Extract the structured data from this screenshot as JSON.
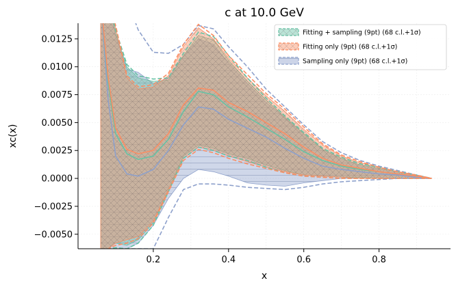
{
  "chart_data": {
    "type": "line",
    "title": "c at 10.0 GeV",
    "xlabel": "x",
    "ylabel": "xc(x)",
    "xlim": [
      0.0,
      0.99
    ],
    "ylim": [
      -0.0063,
      0.0139
    ],
    "xticks": [
      0.2,
      0.4,
      0.6,
      0.8
    ],
    "xtick_labels": [
      "0.2",
      "0.4",
      "0.6",
      "0.8"
    ],
    "yticks": [
      -0.005,
      -0.0025,
      0.0,
      0.0025,
      0.005,
      0.0075,
      0.01,
      0.0125
    ],
    "ytick_labels": [
      "−0.0050",
      "−0.0025",
      "0.0000",
      "0.0025",
      "0.0050",
      "0.0075",
      "0.0100",
      "0.0125"
    ],
    "grid": true,
    "legend_position": "top-right",
    "series": [
      {
        "name": "Fitting + sampling (9pt) (68 c.l.+1σ)",
        "color": "#66c2a5",
        "hatch": "cross",
        "x": [
          0.06,
          0.08,
          0.1,
          0.13,
          0.16,
          0.2,
          0.24,
          0.28,
          0.32,
          0.36,
          0.4,
          0.45,
          0.5,
          0.55,
          0.6,
          0.65,
          0.7,
          0.75,
          0.8,
          0.85,
          0.9,
          0.94
        ],
        "central": [
          0.016,
          0.0085,
          0.004,
          0.0022,
          0.0017,
          0.002,
          0.0035,
          0.006,
          0.0078,
          0.0075,
          0.0064,
          0.0055,
          0.0045,
          0.0035,
          0.0024,
          0.0016,
          0.0011,
          0.0008,
          0.0006,
          0.0004,
          0.0002,
          0.0
        ],
        "band_upper": [
          0.016,
          0.016,
          0.013,
          0.01,
          0.009,
          0.0087,
          0.0088,
          0.011,
          0.0128,
          0.0124,
          0.0106,
          0.0087,
          0.007,
          0.0055,
          0.004,
          0.0026,
          0.0018,
          0.0012,
          0.0009,
          0.0006,
          0.0003,
          0.0
        ],
        "band_lower": [
          -0.0063,
          -0.0063,
          -0.0058,
          -0.006,
          -0.0055,
          -0.004,
          -0.001,
          0.002,
          0.003,
          0.0027,
          0.0022,
          0.0018,
          0.0012,
          0.0007,
          0.0003,
          0.0002,
          0.0001,
          0.0001,
          0.0,
          0.0,
          0.0,
          0.0
        ],
        "dashed_upper": [
          0.016,
          0.016,
          0.0133,
          0.0102,
          0.0092,
          0.0089,
          0.009,
          0.0112,
          0.0131,
          0.0127,
          0.011,
          0.009,
          0.0072,
          0.0056,
          0.0041,
          0.0027,
          0.0019,
          0.0013,
          0.001,
          0.0006,
          0.0003,
          0.0
        ],
        "dashed_lower": [
          -0.0063,
          -0.0063,
          -0.0062,
          -0.0063,
          -0.0058,
          -0.0042,
          -0.0012,
          0.0018,
          0.0028,
          0.0025,
          0.002,
          0.0016,
          0.001,
          0.0005,
          0.0002,
          0.0001,
          0.0,
          0.0,
          0.0,
          0.0,
          0.0,
          0.0
        ]
      },
      {
        "name": "Fitting only (9pt) (68 c.l.+1σ)",
        "color": "#fc8d62",
        "hatch": "cross",
        "x": [
          0.06,
          0.08,
          0.1,
          0.13,
          0.16,
          0.2,
          0.24,
          0.28,
          0.32,
          0.36,
          0.4,
          0.45,
          0.5,
          0.55,
          0.6,
          0.65,
          0.7,
          0.75,
          0.8,
          0.85,
          0.9,
          0.94
        ],
        "central": [
          0.016,
          0.009,
          0.0045,
          0.0026,
          0.0022,
          0.0025,
          0.004,
          0.0066,
          0.0081,
          0.0079,
          0.0068,
          0.006,
          0.005,
          0.004,
          0.0028,
          0.0018,
          0.0012,
          0.0009,
          0.0006,
          0.0004,
          0.0002,
          0.0
        ],
        "band_upper": [
          0.016,
          0.016,
          0.0135,
          0.009,
          0.008,
          0.0082,
          0.0092,
          0.0118,
          0.0135,
          0.0125,
          0.0108,
          0.009,
          0.0074,
          0.006,
          0.0044,
          0.003,
          0.002,
          0.0014,
          0.001,
          0.0006,
          0.0003,
          0.0
        ],
        "band_lower": [
          -0.0063,
          -0.0063,
          -0.0058,
          -0.0055,
          -0.0052,
          -0.0038,
          -0.001,
          0.0018,
          0.0028,
          0.0025,
          0.002,
          0.0015,
          0.001,
          0.0006,
          0.0003,
          0.0002,
          0.0001,
          0.0,
          0.0,
          0.0,
          0.0,
          0.0
        ],
        "dashed_upper": [
          0.016,
          0.016,
          0.0137,
          0.0092,
          0.0082,
          0.0084,
          0.0094,
          0.012,
          0.0138,
          0.0128,
          0.011,
          0.0093,
          0.0076,
          0.0062,
          0.0046,
          0.0031,
          0.0021,
          0.0015,
          0.001,
          0.0006,
          0.0003,
          0.0
        ],
        "dashed_lower": [
          -0.0063,
          -0.0063,
          -0.006,
          -0.0058,
          -0.0054,
          -0.004,
          -0.0012,
          0.0016,
          0.0026,
          0.0023,
          0.0018,
          0.0013,
          0.0009,
          0.0005,
          0.0002,
          0.0001,
          0.0,
          0.0,
          0.0,
          0.0,
          0.0,
          0.0
        ]
      },
      {
        "name": "Sampling only (9pt) (68 c.l.+1σ)",
        "color": "#8da0cb",
        "hatch": "horizontal",
        "x": [
          0.06,
          0.08,
          0.1,
          0.13,
          0.16,
          0.2,
          0.24,
          0.28,
          0.32,
          0.36,
          0.4,
          0.45,
          0.5,
          0.55,
          0.6,
          0.65,
          0.7,
          0.75,
          0.8,
          0.85,
          0.9,
          0.94
        ],
        "central": [
          0.016,
          0.007,
          0.002,
          0.0004,
          0.0002,
          0.0008,
          0.0025,
          0.0048,
          0.0064,
          0.0062,
          0.0053,
          0.0045,
          0.0037,
          0.0027,
          0.0018,
          0.0011,
          0.0008,
          0.0006,
          0.0004,
          0.0003,
          0.0001,
          0.0
        ],
        "band_upper": [
          0.016,
          0.016,
          0.0128,
          0.0098,
          0.0095,
          0.0085,
          0.009,
          0.011,
          0.0125,
          0.012,
          0.0103,
          0.0085,
          0.0068,
          0.0054,
          0.004,
          0.0026,
          0.0018,
          0.0012,
          0.0009,
          0.0006,
          0.0003,
          0.0
        ],
        "band_lower": [
          -0.0063,
          -0.0063,
          -0.0063,
          -0.0063,
          -0.0058,
          -0.0042,
          -0.0018,
          0.0,
          0.0008,
          0.0006,
          0.0002,
          -0.0004,
          -0.0006,
          -0.0007,
          -0.0004,
          -0.0002,
          0.0,
          0.0,
          0.0,
          0.0,
          0.0,
          0.0
        ],
        "dashed_upper": [
          0.016,
          0.016,
          0.016,
          0.016,
          0.0133,
          0.0113,
          0.0112,
          0.012,
          0.0137,
          0.0134,
          0.0118,
          0.01,
          0.008,
          0.0064,
          0.0048,
          0.0033,
          0.0023,
          0.0016,
          0.0011,
          0.0007,
          0.0003,
          0.0
        ],
        "dashed_lower": [
          -0.0063,
          -0.0063,
          -0.0063,
          -0.0063,
          -0.0063,
          -0.0063,
          -0.0035,
          -0.001,
          -0.0005,
          -0.0005,
          -0.0006,
          -0.0008,
          -0.0009,
          -0.001,
          -0.0008,
          -0.0005,
          -0.0003,
          -0.0002,
          -0.0001,
          0.0,
          0.0,
          0.0
        ]
      }
    ]
  }
}
